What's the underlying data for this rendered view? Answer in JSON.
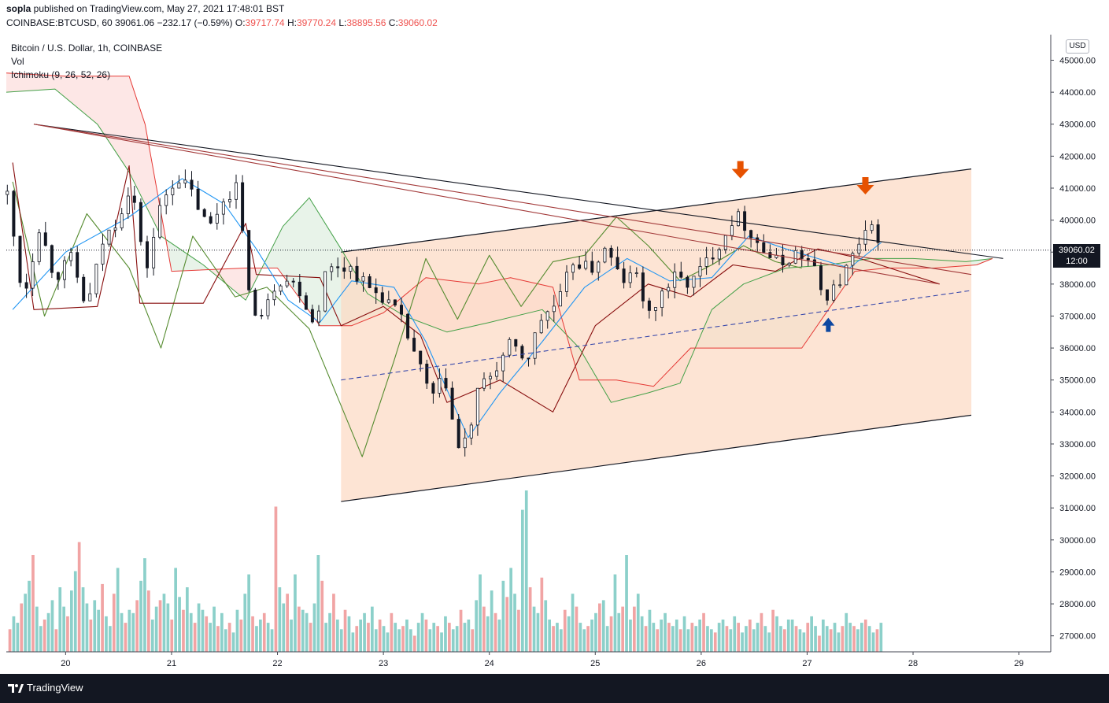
{
  "header": {
    "user": "sopla",
    "published_text": " published on TradingView.com, May 27, 2021 17:48:01 BST",
    "symbol": "COINBASE:BTCUSD, 60",
    "last": "39061.06",
    "change": "−232.17 (−0.59%)",
    "o_label": "O:",
    "o": "39717.74",
    "h_label": "H:",
    "h": "39770.24",
    "l_label": "L:",
    "l": "38895.56",
    "c_label": "C:",
    "c": "39060.02"
  },
  "legend": {
    "title": "Bitcoin / U.S. Dollar, 1h, COINBASE",
    "vol": "Vol",
    "ichimoku": "Ichimoku (9, 26, 52, 26)"
  },
  "currency_button": "USD",
  "price_tag": {
    "price": "39060.02",
    "countdown": "12:00"
  },
  "footer": {
    "brand": "TradingView"
  },
  "colors": {
    "up": "#26a69a",
    "down": "#ef5350",
    "candle": "#131722",
    "tenkan": "#2196f3",
    "kijun": "#880e0e",
    "chikou": "#558b2f",
    "span_a": "#43a047",
    "span_b": "#e53935",
    "channel_fill": "#fcd9c4",
    "arrow_orange": "#e65100",
    "arrow_blue": "#0d47a1"
  },
  "chart_data": {
    "type": "candlestick",
    "y_axis": {
      "range": [
        26500,
        45800
      ],
      "ticks": [
        27000,
        28000,
        29000,
        30000,
        31000,
        32000,
        33000,
        34000,
        35000,
        36000,
        37000,
        38000,
        39000,
        40000,
        41000,
        42000,
        43000,
        44000,
        45000
      ],
      "tick_labels": [
        "27000.00",
        "28000.00",
        "29000.00",
        "30000.00",
        "31000.00",
        "32000.00",
        "33000.00",
        "34000.00",
        "35000.00",
        "36000.00",
        "37000.00",
        "38000.00",
        "39000.00",
        "40000.00",
        "41000.00",
        "42000.00",
        "43000.00",
        "44000.00",
        "45000.00"
      ]
    },
    "x_axis": {
      "range": [
        19.44,
        29.3
      ],
      "ticks": [
        20,
        21,
        22,
        23,
        24,
        25,
        26,
        27,
        28,
        29
      ],
      "tick_labels": [
        "20",
        "21",
        "22",
        "23",
        "24",
        "25",
        "26",
        "27",
        "28",
        "29"
      ]
    },
    "last_price": 39060.02,
    "price_path": [
      [
        19.45,
        40800
      ],
      [
        19.6,
        37500
      ],
      [
        19.75,
        39800
      ],
      [
        19.9,
        38200
      ],
      [
        20.05,
        38800
      ],
      [
        20.2,
        37200
      ],
      [
        20.35,
        39300
      ],
      [
        20.5,
        40100
      ],
      [
        20.62,
        41200
      ],
      [
        20.75,
        38300
      ],
      [
        20.9,
        40500
      ],
      [
        21.05,
        41400
      ],
      [
        21.2,
        40800
      ],
      [
        21.35,
        39700
      ],
      [
        21.5,
        40700
      ],
      [
        21.62,
        41100
      ],
      [
        21.7,
        38500
      ],
      [
        21.82,
        36500
      ],
      [
        21.92,
        37800
      ],
      [
        22.05,
        38200
      ],
      [
        22.2,
        37900
      ],
      [
        22.35,
        36700
      ],
      [
        22.45,
        38300
      ],
      [
        22.55,
        38600
      ],
      [
        22.7,
        38500
      ],
      [
        22.85,
        37900
      ],
      [
        23.0,
        37600
      ],
      [
        23.15,
        37000
      ],
      [
        23.3,
        35800
      ],
      [
        23.45,
        34400
      ],
      [
        23.58,
        35100
      ],
      [
        23.7,
        32800
      ],
      [
        23.8,
        33200
      ],
      [
        23.9,
        34700
      ],
      [
        24.05,
        35300
      ],
      [
        24.2,
        36100
      ],
      [
        24.35,
        35600
      ],
      [
        24.5,
        37000
      ],
      [
        24.65,
        37400
      ],
      [
        24.8,
        38800
      ],
      [
        24.95,
        38400
      ],
      [
        25.1,
        39100
      ],
      [
        25.25,
        38100
      ],
      [
        25.4,
        38300
      ],
      [
        25.5,
        36900
      ],
      [
        25.62,
        37700
      ],
      [
        25.75,
        38200
      ],
      [
        25.9,
        38000
      ],
      [
        26.05,
        38700
      ],
      [
        26.2,
        39400
      ],
      [
        26.32,
        40200
      ],
      [
        26.45,
        39700
      ],
      [
        26.6,
        39000
      ],
      [
        26.75,
        38600
      ],
      [
        26.9,
        39000
      ],
      [
        27.05,
        38600
      ],
      [
        27.15,
        37600
      ],
      [
        27.28,
        37900
      ],
      [
        27.42,
        38800
      ],
      [
        27.55,
        39500
      ],
      [
        27.65,
        39800
      ],
      [
        27.7,
        39060
      ]
    ],
    "ichimoku_tenkan": [
      [
        19.5,
        37200
      ],
      [
        20.0,
        39000
      ],
      [
        20.6,
        40100
      ],
      [
        21.1,
        41300
      ],
      [
        21.5,
        40500
      ],
      [
        21.8,
        39100
      ],
      [
        22.1,
        37500
      ],
      [
        22.4,
        36800
      ],
      [
        22.7,
        38100
      ],
      [
        23.1,
        37900
      ],
      [
        23.4,
        36200
      ],
      [
        23.8,
        33200
      ],
      [
        24.1,
        34600
      ],
      [
        24.5,
        36200
      ],
      [
        24.9,
        37900
      ],
      [
        25.3,
        38800
      ],
      [
        25.7,
        38100
      ],
      [
        26.1,
        38200
      ],
      [
        26.45,
        39500
      ],
      [
        26.8,
        39100
      ],
      [
        27.1,
        38800
      ],
      [
        27.4,
        38500
      ],
      [
        27.7,
        39300
      ]
    ],
    "ichimoku_kijun": [
      [
        19.5,
        41800
      ],
      [
        19.7,
        37200
      ],
      [
        20.3,
        37300
      ],
      [
        20.6,
        41700
      ],
      [
        20.7,
        37400
      ],
      [
        21.3,
        37400
      ],
      [
        21.7,
        39900
      ],
      [
        21.8,
        38300
      ],
      [
        22.4,
        38200
      ],
      [
        22.6,
        36700
      ],
      [
        23.0,
        37300
      ],
      [
        23.35,
        36400
      ],
      [
        23.6,
        34300
      ],
      [
        24.1,
        35000
      ],
      [
        24.6,
        34000
      ],
      [
        25.0,
        36700
      ],
      [
        25.5,
        38000
      ],
      [
        25.9,
        37600
      ],
      [
        26.3,
        38600
      ],
      [
        26.7,
        38400
      ],
      [
        27.1,
        39100
      ],
      [
        27.5,
        38800
      ],
      [
        28.25,
        38000
      ]
    ],
    "ichimoku_chikou": [
      [
        19.5,
        41200
      ],
      [
        19.8,
        37000
      ],
      [
        20.2,
        40200
      ],
      [
        20.6,
        38500
      ],
      [
        20.9,
        36000
      ],
      [
        21.2,
        39500
      ],
      [
        21.6,
        37600
      ],
      [
        21.9,
        37900
      ],
      [
        22.3,
        36600
      ],
      [
        22.6,
        34200
      ],
      [
        22.8,
        32600
      ],
      [
        23.1,
        35600
      ],
      [
        23.4,
        38800
      ],
      [
        23.7,
        36900
      ],
      [
        24.0,
        38900
      ],
      [
        24.3,
        37300
      ],
      [
        24.6,
        38700
      ],
      [
        24.9,
        38900
      ],
      [
        25.2,
        40100
      ],
      [
        25.5,
        39200
      ],
      [
        25.8,
        38100
      ],
      [
        26.1,
        38600
      ],
      [
        26.4,
        39200
      ],
      [
        26.7,
        38700
      ],
      [
        26.95,
        38500
      ]
    ],
    "ichimoku_span_a": [
      [
        19.44,
        44000
      ],
      [
        19.9,
        44100
      ],
      [
        20.3,
        43000
      ],
      [
        20.6,
        41500
      ],
      [
        20.9,
        39500
      ],
      [
        21.3,
        38600
      ],
      [
        21.7,
        37500
      ],
      [
        22.05,
        39800
      ],
      [
        22.3,
        40700
      ],
      [
        22.6,
        39100
      ],
      [
        22.85,
        37700
      ],
      [
        23.2,
        37000
      ],
      [
        23.6,
        36500
      ],
      [
        24.0,
        36800
      ],
      [
        24.5,
        37200
      ],
      [
        24.85,
        36000
      ],
      [
        25.15,
        34300
      ],
      [
        25.5,
        34600
      ],
      [
        25.8,
        34900
      ],
      [
        26.1,
        37200
      ],
      [
        26.4,
        38000
      ],
      [
        26.8,
        38500
      ],
      [
        27.2,
        38600
      ],
      [
        27.6,
        38800
      ],
      [
        28.0,
        38800
      ],
      [
        28.5,
        38700
      ],
      [
        28.75,
        38800
      ]
    ],
    "ichimoku_span_b": [
      [
        19.44,
        44600
      ],
      [
        20.0,
        44500
      ],
      [
        20.6,
        44500
      ],
      [
        20.75,
        43000
      ],
      [
        21.0,
        38400
      ],
      [
        21.7,
        38500
      ],
      [
        22.0,
        38500
      ],
      [
        22.4,
        36700
      ],
      [
        22.7,
        36700
      ],
      [
        23.0,
        37100
      ],
      [
        23.4,
        38200
      ],
      [
        23.9,
        38000
      ],
      [
        24.2,
        38200
      ],
      [
        24.6,
        37900
      ],
      [
        24.85,
        35000
      ],
      [
        25.2,
        35000
      ],
      [
        25.55,
        34800
      ],
      [
        25.9,
        36000
      ],
      [
        26.2,
        36000
      ],
      [
        26.6,
        36000
      ],
      [
        26.95,
        36000
      ],
      [
        27.2,
        37200
      ],
      [
        27.45,
        38400
      ],
      [
        27.75,
        38500
      ],
      [
        28.2,
        38500
      ],
      [
        28.6,
        38600
      ],
      [
        28.75,
        38800
      ]
    ],
    "annotations": [
      {
        "type": "channel",
        "points": [
          [
            22.6,
            39000
          ],
          [
            28.55,
            41600
          ],
          [
            28.55,
            33900
          ],
          [
            22.6,
            31200
          ]
        ]
      },
      {
        "type": "trendline",
        "color": "#131722",
        "points": [
          [
            19.7,
            43000
          ],
          [
            28.85,
            38800
          ]
        ]
      },
      {
        "type": "trendline",
        "color": "#a33a3a",
        "points": [
          [
            19.7,
            43000
          ],
          [
            28.55,
            38300
          ]
        ]
      },
      {
        "type": "trendline",
        "color": "#a33a3a",
        "points": [
          [
            19.7,
            43000
          ],
          [
            28.25,
            38000
          ]
        ]
      },
      {
        "type": "dashed_line",
        "color": "#3949ab",
        "points": [
          [
            22.6,
            35000
          ],
          [
            28.55,
            37800
          ]
        ]
      },
      {
        "type": "arrow_down",
        "color": "#e65100",
        "at": [
          26.37,
          41500
        ]
      },
      {
        "type": "arrow_down",
        "color": "#e65100",
        "at": [
          27.55,
          41000
        ]
      },
      {
        "type": "arrow_up",
        "color": "#0d47a1",
        "at": [
          27.2,
          36800
        ]
      }
    ],
    "volume": {
      "range": [
        0,
        5000
      ],
      "values": [
        700,
        1100,
        900,
        1500,
        1800,
        2200,
        3000,
        1400,
        800,
        1000,
        1200,
        1600,
        700,
        2000,
        1400,
        1100,
        1900,
        2500,
        3400,
        2000,
        1500,
        1000,
        1600,
        1300,
        2100,
        1100,
        800,
        1800,
        2600,
        1200,
        900,
        1300,
        1200,
        1600,
        2200,
        2900,
        1900,
        1000,
        1400,
        1600,
        1800,
        1500,
        1000,
        2600,
        1700,
        1300,
        2000,
        1200,
        900,
        1500,
        1300,
        1100,
        900,
        1400,
        800,
        1200,
        700,
        900,
        600,
        1300,
        1000,
        1800,
        2400,
        1100,
        800,
        1000,
        1200,
        900,
        700,
        4500,
        2000,
        1500,
        1800,
        1000,
        2400,
        1400,
        1300,
        1200,
        900,
        1500,
        3000,
        2200,
        900,
        1200,
        1800,
        1000,
        700,
        1300,
        1100,
        600,
        800,
        1000,
        1200,
        900,
        1400,
        700,
        1000,
        800,
        600,
        1200,
        900,
        700,
        800,
        1000,
        700,
        500,
        900,
        1200,
        1000,
        700,
        900,
        800,
        600,
        1100,
        900,
        700,
        800,
        1300,
        900,
        1000,
        700,
        1600,
        2400,
        1400,
        1100,
        1900,
        1200,
        1000,
        2200,
        1700,
        2600,
        1800,
        1300,
        4400,
        5000,
        2000,
        1400,
        1200,
        2300,
        1600,
        1000,
        800,
        900,
        700,
        1300,
        1100,
        1800,
        1400,
        900,
        700,
        800,
        1000,
        1200,
        1500,
        1600,
        800,
        1100,
        2400,
        1200,
        1400,
        3000,
        1000,
        1400,
        1800,
        1100,
        800,
        1300,
        900,
        700,
        1000,
        1200,
        900,
        800,
        1000,
        700,
        1100,
        700,
        900,
        800,
        1000,
        1200,
        800,
        700,
        600,
        900,
        1000,
        800,
        700,
        1100,
        900,
        600,
        800,
        1000,
        700,
        900,
        1200,
        800,
        600,
        1300,
        1100,
        800,
        700,
        1000,
        1000,
        800,
        700,
        600,
        900,
        1100,
        800,
        500,
        1000,
        800,
        700,
        900,
        600,
        800,
        1200,
        900,
        800,
        700,
        900,
        1000,
        800,
        600,
        700,
        900
      ]
    }
  }
}
